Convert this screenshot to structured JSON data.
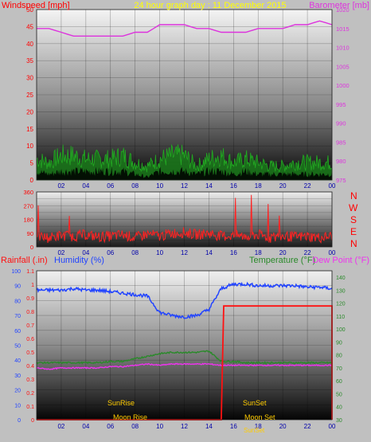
{
  "header": {
    "left_title": "Windspeed [mph]",
    "center_title": "24 hour graph day : 11 December 2015",
    "right_title": "Barometer [mb]"
  },
  "bottom_header": {
    "rainfall": "Rainfall (.in)",
    "humidity": "Humidity (%)",
    "temperature": "Temperature (°F)",
    "dewpoint": "Dew Point (°F)"
  },
  "compass": [
    "N",
    "W",
    "S",
    "E",
    "N"
  ],
  "x_tick_labels": [
    "02",
    "04",
    "06",
    "08",
    "10",
    "12",
    "14",
    "16",
    "18",
    "20",
    "22",
    "00"
  ],
  "annotations": {
    "sunrise": "SunRise",
    "sunset": "SunSet",
    "moonrise": "Moon Rise",
    "moonset": "Moon Set",
    "sunset_bottom": "SunSet"
  },
  "colors": {
    "wind_axis": "#ff0000",
    "header_center": "#ffff00",
    "barometer": "#dd33dd",
    "wind_gust": "#22aa22",
    "wind_avg": "#00ff00",
    "direction": "#ff2222",
    "humidity": "#2244ff",
    "temperature": "#2a8a2a",
    "dewpoint": "#ee33ee",
    "rainfall": "#ff1111",
    "annotation": "#ffcc00"
  },
  "chart_data": [
    {
      "type": "line",
      "id": "wind_baro",
      "title": "24 hour graph day : 11 December 2015",
      "ylabel": "Windspeed [mph]",
      "y2label": "Barometer [mb]",
      "ylim": [
        0,
        50
      ],
      "y2lim": [
        975,
        1020
      ],
      "y_ticks": [
        0,
        5,
        10,
        15,
        20,
        25,
        30,
        35,
        40,
        45,
        50
      ],
      "y2_ticks": [
        975,
        980,
        985,
        990,
        995,
        1000,
        1005,
        1010,
        1015,
        1020
      ],
      "x_hours": [
        0,
        1,
        2,
        3,
        4,
        5,
        6,
        7,
        8,
        9,
        10,
        11,
        12,
        13,
        14,
        15,
        16,
        17,
        18,
        19,
        20,
        21,
        22,
        23,
        24
      ],
      "series": [
        {
          "name": "Barometer [mb]",
          "axis": "y2",
          "values": [
            1015,
            1015,
            1014,
            1013,
            1013,
            1013,
            1013,
            1013,
            1014,
            1014,
            1016,
            1016,
            1016,
            1015,
            1015,
            1014,
            1014,
            1014,
            1015,
            1015,
            1015,
            1016,
            1016,
            1017,
            1016
          ]
        },
        {
          "axis": "y",
          "values": [
            6,
            5,
            7,
            7,
            6,
            6,
            6,
            7,
            5,
            4,
            6,
            7,
            7,
            4,
            6,
            7,
            5,
            6,
            5,
            4,
            4,
            5,
            5,
            5,
            5
          ]
        },
        {
          "axis": "y",
          "values": [
            3,
            2,
            3,
            3,
            3,
            3,
            3,
            3,
            2,
            1,
            3,
            3,
            3,
            2,
            3,
            3,
            2,
            3,
            2,
            2,
            2,
            2,
            2,
            2,
            2
          ]
        }
      ]
    },
    {
      "type": "line",
      "id": "direction",
      "ylabel": "",
      "ylim": [
        0,
        360
      ],
      "y_ticks": [
        0,
        45,
        90,
        135,
        180,
        225,
        270,
        315,
        360
      ],
      "x_hours": [
        0,
        1,
        2,
        3,
        4,
        5,
        6,
        7,
        8,
        9,
        10,
        11,
        12,
        13,
        14,
        15,
        16,
        17,
        18,
        19,
        20,
        21,
        22,
        23,
        24
      ],
      "series": [
        {
          "axis": "y",
          "values": [
            70,
            60,
            75,
            70,
            80,
            65,
            70,
            80,
            60,
            85,
            70,
            90,
            95,
            80,
            90,
            70,
            75,
            70,
            80,
            60,
            70,
            65,
            70,
            60,
            70
          ]
        }
      ]
    },
    {
      "type": "line",
      "id": "humidity_temp",
      "ylabel": "Humidity (%)",
      "y2label": "Temperature (°F)",
      "ylim": [
        0,
        100
      ],
      "y2lim": [
        30,
        145
      ],
      "rain_lim": [
        0,
        1.1
      ],
      "y_ticks": [
        0,
        10,
        20,
        30,
        40,
        50,
        60,
        70,
        80,
        90,
        100
      ],
      "y2_ticks": [
        30,
        35,
        40,
        45,
        50,
        55,
        60,
        65,
        70,
        75,
        80,
        85,
        90,
        95,
        100,
        105,
        110,
        115,
        120,
        125,
        130,
        135,
        140
      ],
      "rain_ticks": [
        0,
        0.1,
        0.2,
        0.3,
        0.4,
        0.5,
        0.6,
        0.7,
        0.8,
        0.9,
        1,
        1.1
      ],
      "x_hours": [
        0,
        1,
        2,
        3,
        4,
        5,
        6,
        7,
        8,
        9,
        10,
        11,
        12,
        13,
        14,
        15,
        16,
        17,
        18,
        19,
        20,
        21,
        22,
        23,
        24
      ],
      "series": [
        {
          "name": "Humidity (%)",
          "axis": "y",
          "values": [
            87,
            87,
            87,
            88,
            87,
            87,
            86,
            85,
            84,
            83,
            72,
            70,
            69,
            70,
            74,
            88,
            91,
            91,
            90,
            90,
            90,
            90,
            89,
            89,
            88
          ]
        },
        {
          "name": "Temperature (°F)",
          "axis": "y2",
          "values": [
            74,
            74,
            74,
            74,
            74,
            74,
            75,
            75,
            77,
            79,
            81,
            82,
            82,
            82,
            83,
            75,
            75,
            74,
            74,
            74,
            74,
            74,
            74,
            74,
            74
          ]
        },
        {
          "name": "Dew Point (°F)",
          "axis": "y2",
          "values": [
            70,
            69,
            70,
            70,
            70,
            70,
            71,
            71,
            72,
            73,
            72,
            73,
            73,
            73,
            73,
            72,
            72,
            72,
            72,
            72,
            72,
            72,
            72,
            72,
            72
          ]
        },
        {
          "name": "Rainfall (.in)",
          "axis": "rain",
          "values": [
            0,
            0,
            0,
            0,
            0,
            0,
            0,
            0,
            0,
            0,
            0,
            0,
            0,
            0,
            0,
            0,
            0.84,
            0.84,
            0.84,
            0.84,
            0.84,
            0.84,
            0.84,
            0.84,
            0.84
          ]
        }
      ]
    }
  ]
}
